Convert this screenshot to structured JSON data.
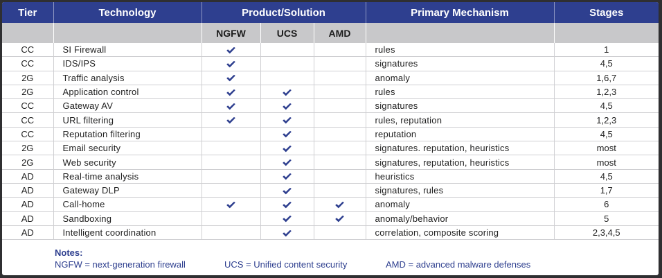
{
  "headers": {
    "tier": "Tier",
    "technology": "Technology",
    "product": "Product/Solution",
    "mechanism": "Primary Mechanism",
    "stages": "Stages",
    "sub": [
      "NGFW",
      "UCS",
      "AMD"
    ]
  },
  "rows": [
    {
      "tier": "CC",
      "tech": "SI Firewall",
      "ngfw": true,
      "ucs": false,
      "amd": false,
      "mech": "rules",
      "stages": "1"
    },
    {
      "tier": "CC",
      "tech": "IDS/IPS",
      "ngfw": true,
      "ucs": false,
      "amd": false,
      "mech": "signatures",
      "stages": "4,5"
    },
    {
      "tier": "2G",
      "tech": "Traffic analysis",
      "ngfw": true,
      "ucs": false,
      "amd": false,
      "mech": "anomaly",
      "stages": "1,6,7"
    },
    {
      "tier": "2G",
      "tech": "Application control",
      "ngfw": true,
      "ucs": true,
      "amd": false,
      "mech": "rules",
      "stages": "1,2,3"
    },
    {
      "tier": "CC",
      "tech": "Gateway AV",
      "ngfw": true,
      "ucs": true,
      "amd": false,
      "mech": "signatures",
      "stages": "4,5"
    },
    {
      "tier": "CC",
      "tech": "URL filtering",
      "ngfw": true,
      "ucs": true,
      "amd": false,
      "mech": "rules, reputation",
      "stages": "1,2,3"
    },
    {
      "tier": "CC",
      "tech": "Reputation filtering",
      "ngfw": false,
      "ucs": true,
      "amd": false,
      "mech": "reputation",
      "stages": "4,5"
    },
    {
      "tier": "2G",
      "tech": "Email security",
      "ngfw": false,
      "ucs": true,
      "amd": false,
      "mech": "signatures. reputation, heuristics",
      "stages": "most"
    },
    {
      "tier": "2G",
      "tech": "Web security",
      "ngfw": false,
      "ucs": true,
      "amd": false,
      "mech": "signatures, reputation, heuristics",
      "stages": "most"
    },
    {
      "tier": "AD",
      "tech": "Real-time analysis",
      "ngfw": false,
      "ucs": true,
      "amd": false,
      "mech": "heuristics",
      "stages": "4,5"
    },
    {
      "tier": "AD",
      "tech": "Gateway DLP",
      "ngfw": false,
      "ucs": true,
      "amd": false,
      "mech": "signatures, rules",
      "stages": "1,7"
    },
    {
      "tier": "AD",
      "tech": "Call-home",
      "ngfw": true,
      "ucs": true,
      "amd": true,
      "mech": "anomaly",
      "stages": "6"
    },
    {
      "tier": "AD",
      "tech": "Sandboxing",
      "ngfw": false,
      "ucs": true,
      "amd": true,
      "mech": "anomaly/behavior",
      "stages": "5"
    },
    {
      "tier": "AD",
      "tech": "Intelligent coordination",
      "ngfw": false,
      "ucs": true,
      "amd": false,
      "mech": "correlation, composite scoring",
      "stages": "2,3,4,5"
    }
  ],
  "notes": {
    "title": "Notes:",
    "ngfw": "NGFW = next-generation firewall",
    "ucs": "UCS = Unified content security",
    "amd": "AMD = advanced malware defenses"
  },
  "colors": {
    "header": "#2e3f8f",
    "subheader": "#c8c8ca",
    "check": "#2e3f8f",
    "notes_text": "#2e3f8f",
    "frame": "#2f2f31"
  },
  "icons": {
    "check": "check-icon"
  }
}
